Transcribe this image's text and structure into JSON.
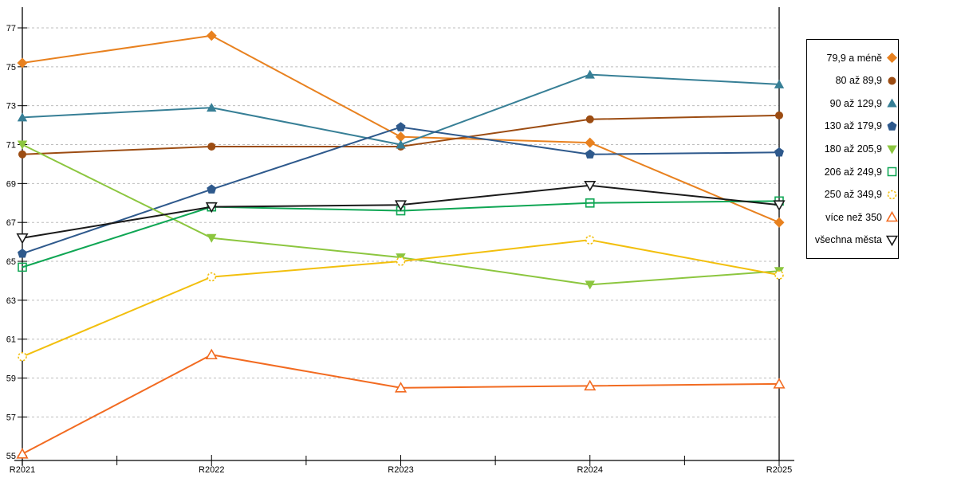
{
  "chart_data": {
    "type": "line",
    "title": "",
    "xlabel": "",
    "ylabel": "",
    "categories": [
      "R2021",
      "R2022",
      "R2023",
      "R2024",
      "R2025"
    ],
    "yticks": [
      55,
      57,
      59,
      61,
      63,
      65,
      67,
      69,
      71,
      73,
      75,
      77
    ],
    "ylim": [
      55,
      78.1
    ],
    "grid": "horizontal-dotted",
    "grid_color": "#bdbdbd",
    "axis_color": "#000000",
    "legend_position": "right",
    "series": [
      {
        "name": "79,9 a méně",
        "color": "#e8811f",
        "marker": "diamond",
        "marker_style": "filled",
        "values": [
          75.2,
          76.6,
          71.4,
          71.1,
          67.0
        ]
      },
      {
        "name": "80 až 89,9",
        "color": "#9c4c12",
        "marker": "circle",
        "marker_style": "filled",
        "values": [
          70.5,
          70.9,
          70.9,
          72.3,
          72.5
        ]
      },
      {
        "name": "90 až 129,9",
        "color": "#377f96",
        "marker": "triangle-up",
        "marker_style": "filled",
        "values": [
          72.4,
          72.9,
          71.0,
          74.6,
          74.1
        ]
      },
      {
        "name": "130 až 179,9",
        "color": "#2e598c",
        "marker": "pentagon",
        "marker_style": "filled",
        "values": [
          65.4,
          68.7,
          71.9,
          70.5,
          70.6
        ]
      },
      {
        "name": "180 až 205,9",
        "color": "#8cc63f",
        "marker": "triangle-down",
        "marker_style": "filled",
        "values": [
          71.0,
          66.2,
          65.2,
          63.8,
          64.5
        ]
      },
      {
        "name": "206 až 249,9",
        "color": "#0fa654",
        "marker": "square",
        "marker_style": "open",
        "values": [
          64.7,
          67.8,
          67.6,
          68.0,
          68.1
        ]
      },
      {
        "name": "250 až 349,9",
        "color": "#f2bf0d",
        "marker": "circle",
        "marker_style": "open-dashed",
        "values": [
          60.1,
          64.2,
          65.0,
          66.1,
          64.3
        ]
      },
      {
        "name": "více než 350",
        "color": "#f26b21",
        "marker": "triangle-up",
        "marker_style": "open",
        "values": [
          55.1,
          60.2,
          58.5,
          58.6,
          58.7
        ]
      },
      {
        "name": "všechna města",
        "color": "#1a1a1a",
        "marker": "triangle-down",
        "marker_style": "open",
        "values": [
          66.2,
          67.8,
          67.9,
          68.9,
          67.9
        ]
      }
    ]
  },
  "legend": {
    "border_color": "#000000",
    "background": "#ffffff"
  }
}
